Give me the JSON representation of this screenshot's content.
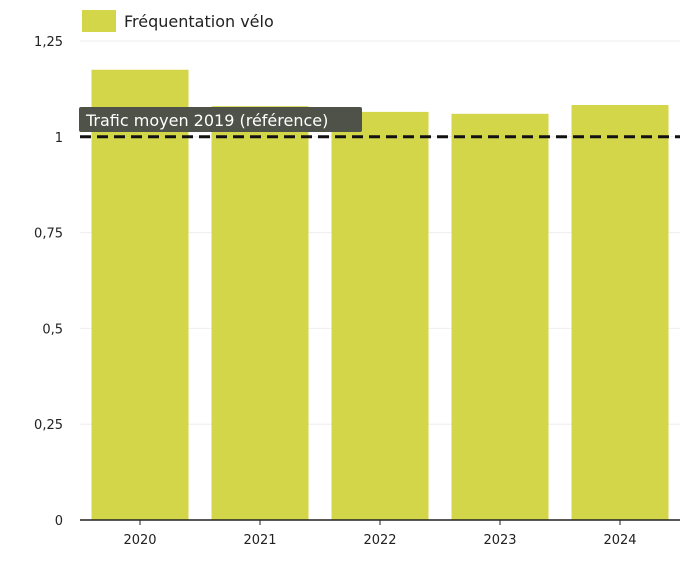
{
  "chart_data": {
    "type": "bar",
    "categories": [
      "2020",
      "2021",
      "2022",
      "2023",
      "2024"
    ],
    "series": [
      {
        "name": "Fréquentation vélo",
        "values": [
          1.175,
          1.08,
          1.065,
          1.06,
          1.083
        ]
      }
    ],
    "ylim": [
      0,
      1.25
    ],
    "y_ticks": [
      "0",
      "0,25",
      "0,5",
      "0,75",
      "1",
      "1,25"
    ],
    "y_tick_values": [
      0,
      0.25,
      0.5,
      0.75,
      1,
      1.25
    ],
    "reference_line": {
      "value": 1,
      "label": "Trafic moyen 2019 (référence)",
      "style": "dashed"
    },
    "grid": true,
    "legend_position": "top-left",
    "colors": {
      "bar": "#d4d64a",
      "reference_line": "#111111",
      "reference_label_bg": "#4f5248",
      "gridline": "#eeeeee",
      "axis": "#222222"
    }
  }
}
